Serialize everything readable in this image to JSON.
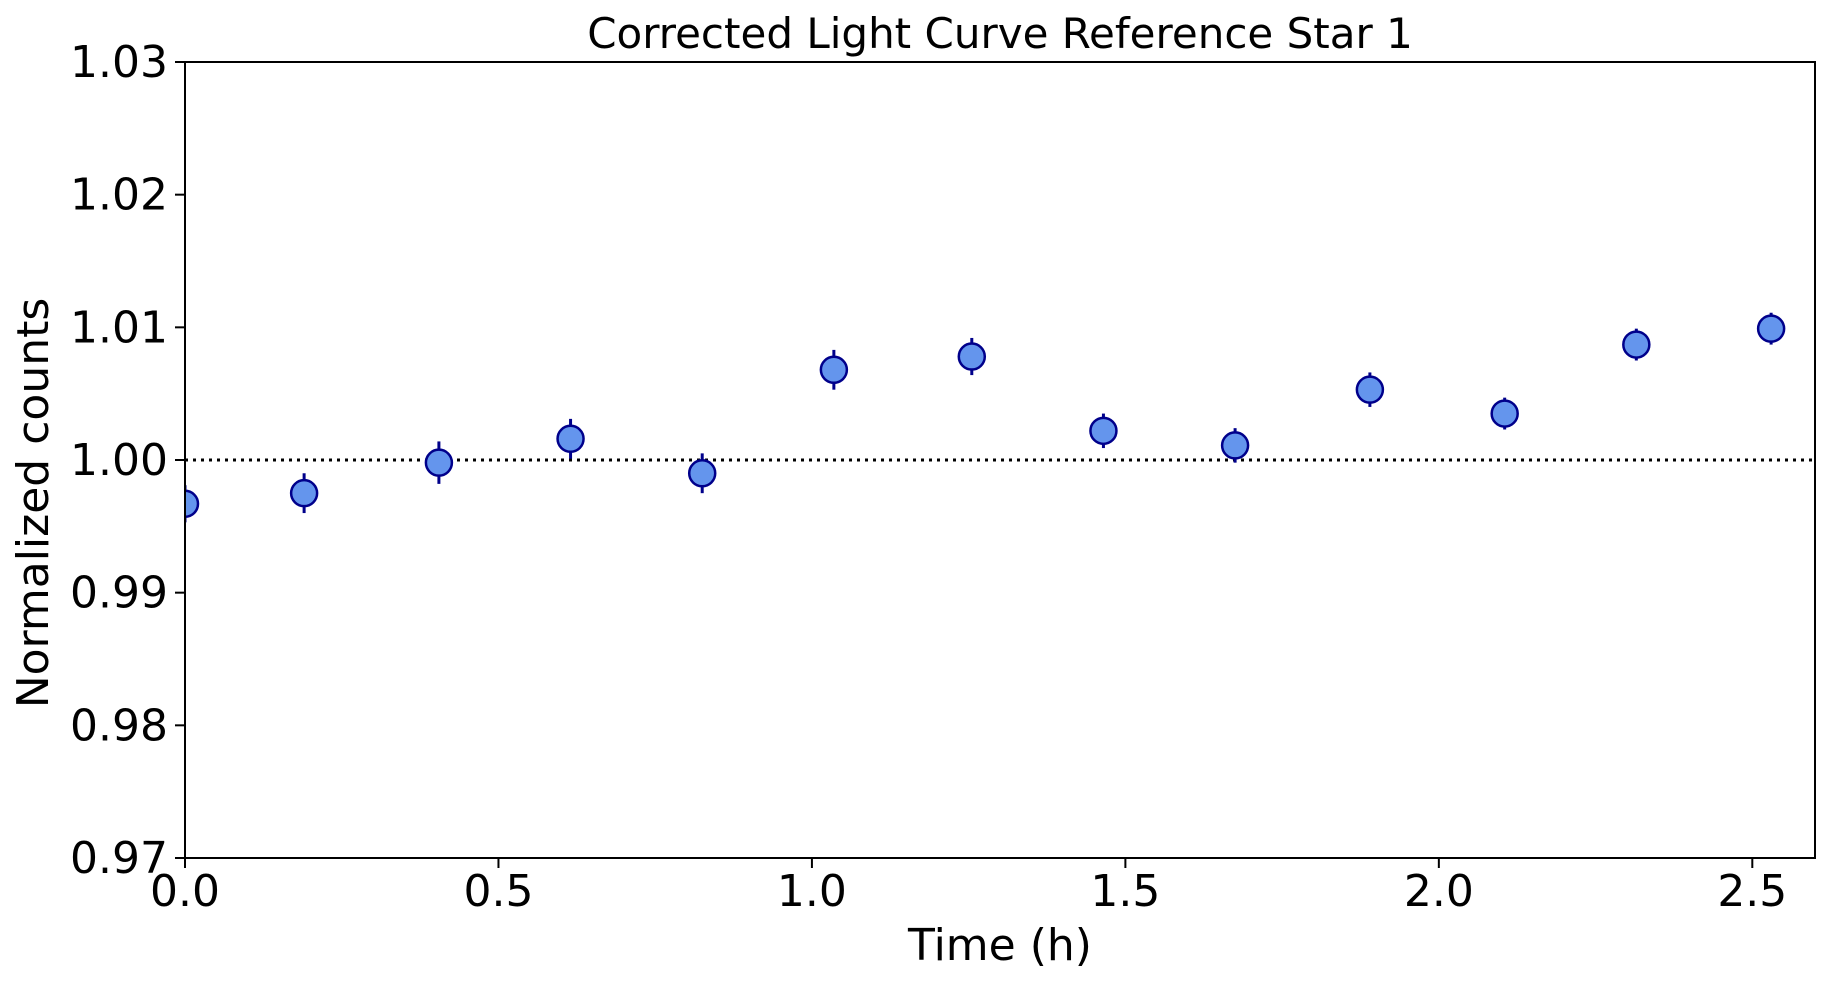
{
  "chart_data": {
    "type": "scatter",
    "title": "Corrected Light Curve Reference Star 1",
    "xlabel": "Time (h)",
    "ylabel": "Normalized counts",
    "xlim": [
      0.0,
      2.6
    ],
    "ylim": [
      0.97,
      1.03
    ],
    "xticks": [
      "0.0",
      "0.5",
      "1.0",
      "1.5",
      "2.0",
      "2.5"
    ],
    "yticks": [
      "0.97",
      "0.98",
      "0.99",
      "1.00",
      "1.01",
      "1.02",
      "1.03"
    ],
    "reference_line": 1.0,
    "grid": false,
    "series": [
      {
        "name": "Reference Star 1",
        "x": [
          0.0,
          0.19,
          0.405,
          0.615,
          0.825,
          1.035,
          1.255,
          1.465,
          1.675,
          1.89,
          2.105,
          2.315,
          2.53
        ],
        "y": [
          0.9967,
          0.9975,
          0.9998,
          1.0016,
          0.999,
          1.0068,
          1.0078,
          1.0022,
          1.0011,
          1.0053,
          1.0035,
          1.0087,
          1.0099
        ],
        "yerr": [
          0.0014,
          0.0015,
          0.0016,
          0.0015,
          0.0015,
          0.0015,
          0.0014,
          0.0013,
          0.0013,
          0.0013,
          0.0012,
          0.0012,
          0.0012
        ]
      }
    ],
    "colors": {
      "marker_fill": "#6495ED",
      "marker_edge": "#00008B",
      "errorbar": "#00008B",
      "reference_line": "#000000"
    }
  }
}
